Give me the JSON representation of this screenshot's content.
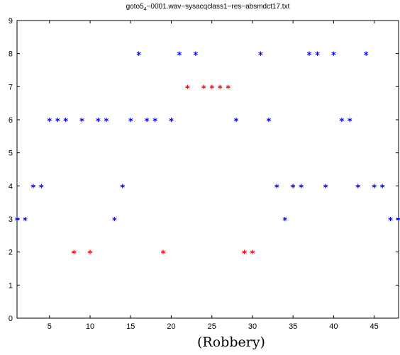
{
  "chart_data": {
    "type": "scatter",
    "title_main": "goto5",
    "title_sub": "4",
    "title_rest": "−0001.wav−sysacqclass1−res−absmdct17.txt",
    "xlabel": "(Robbery)",
    "ylabel": "",
    "xlim": [
      1,
      48
    ],
    "ylim": [
      0,
      9
    ],
    "xticks": [
      5,
      10,
      15,
      20,
      25,
      30,
      35,
      40,
      45
    ],
    "yticks": [
      0,
      1,
      2,
      3,
      4,
      5,
      6,
      7,
      8,
      9
    ],
    "grid": false,
    "marker": "*",
    "colors": {
      "blue": "#0000ff",
      "red": "#ff0000"
    },
    "x": [
      1,
      2,
      3,
      4,
      5,
      6,
      7,
      8,
      9,
      10,
      11,
      12,
      13,
      14,
      15,
      16,
      17,
      18,
      19,
      20,
      21,
      22,
      23,
      24,
      25,
      26,
      27,
      28,
      29,
      30,
      31,
      32,
      33,
      34,
      35,
      36,
      37,
      38,
      39,
      40,
      41,
      42,
      43,
      44,
      45,
      46,
      47,
      48
    ],
    "y": [
      3,
      3,
      4,
      4,
      6,
      6,
      6,
      2,
      6,
      2,
      6,
      6,
      3,
      4,
      6,
      8,
      6,
      6,
      2,
      6,
      8,
      7,
      8,
      7,
      7,
      7,
      7,
      6,
      2,
      2,
      8,
      6,
      4,
      3,
      4,
      4,
      8,
      8,
      4,
      8,
      6,
      6,
      4,
      8,
      4,
      4,
      3,
      3
    ],
    "point_colors": [
      "blue",
      "blue",
      "blue",
      "blue",
      "blue",
      "blue",
      "blue",
      "red",
      "blue",
      "red",
      "blue",
      "blue",
      "blue",
      "blue",
      "blue",
      "blue",
      "blue",
      "blue",
      "red",
      "blue",
      "blue",
      "red",
      "blue",
      "red",
      "red",
      "red",
      "red",
      "blue",
      "red",
      "red",
      "blue",
      "blue",
      "blue",
      "blue",
      "blue",
      "blue",
      "blue",
      "blue",
      "blue",
      "blue",
      "blue",
      "blue",
      "blue",
      "blue",
      "blue",
      "blue",
      "blue",
      "blue"
    ]
  }
}
